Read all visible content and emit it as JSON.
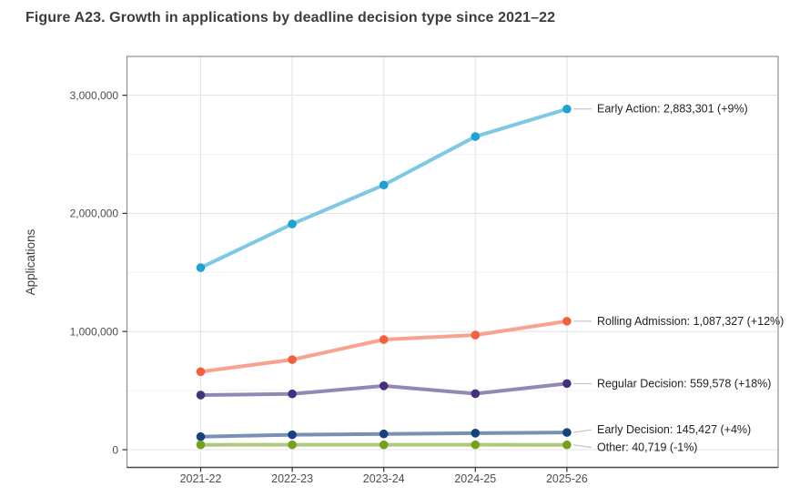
{
  "chart_data": {
    "type": "line",
    "title": "Figure A23. Growth in applications by deadline decision type since 2021–22",
    "xlabel": "",
    "ylabel": "Applications",
    "categories": [
      "2021-22",
      "2022-23",
      "2023-24",
      "2024-25",
      "2025-26"
    ],
    "y_axis": {
      "min": 0,
      "max": 3000000,
      "major_ticks": [
        0,
        1000000,
        2000000,
        3000000
      ],
      "major_tick_labels": [
        "0",
        "1,000,000",
        "2,000,000",
        "3,000,000"
      ],
      "minor_ticks": [
        500000,
        1500000,
        2500000
      ]
    },
    "grid": "on",
    "legend_position": "end-of-line-labels",
    "series": [
      {
        "name": "Early Action",
        "values": [
          1540000,
          1910000,
          2240000,
          2650000,
          2883301
        ],
        "end_label": "Early Action: 2,883,301 (+9%)",
        "point_color": "#1fa1d2",
        "line_color": "#7dc8e5"
      },
      {
        "name": "Rolling Admission",
        "values": [
          660000,
          762000,
          932000,
          970000,
          1087327
        ],
        "end_label": "Rolling Admission: 1,087,327 (+12%)",
        "point_color": "#f2603f",
        "line_color": "#f7a390"
      },
      {
        "name": "Regular Decision",
        "values": [
          462000,
          472000,
          540000,
          474000,
          559578
        ],
        "end_label": "Regular Decision: 559,578 (+18%)",
        "point_color": "#46307e",
        "line_color": "#9487b4"
      },
      {
        "name": "Early Decision",
        "values": [
          110000,
          126000,
          133000,
          140000,
          145427
        ],
        "end_label": "Early Decision: 145,427 (+4%)",
        "point_color": "#15427e",
        "line_color": "#7791b4"
      },
      {
        "name": "Other",
        "values": [
          40800,
          41200,
          41000,
          41130,
          40719
        ],
        "end_label": "Other: 40,719 (-1%)",
        "point_color": "#75a01e",
        "line_color": "#afc87c"
      }
    ]
  },
  "colors": {
    "background": "#ffffff",
    "title_text": "#3a3d41",
    "panel_border": "#8f8f8f",
    "axis_line": "#4f4f4f",
    "grid_major": "#e4e4e4",
    "grid_minor": "#f2f2f2",
    "tick_mark": "#333333",
    "tick_label": "#4d4d4d",
    "annotation_text": "#222222",
    "leader_line": "#bcbcbc"
  }
}
